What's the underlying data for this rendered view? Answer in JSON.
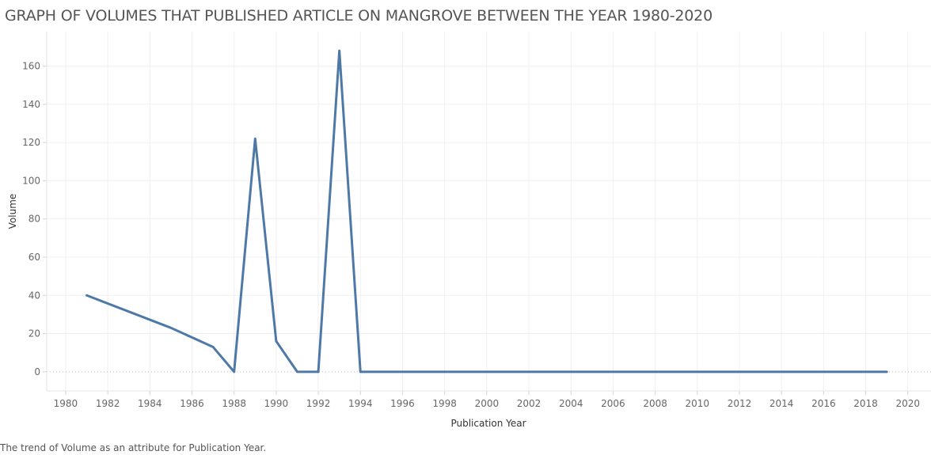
{
  "chart_data": {
    "type": "line",
    "title": "GRAPH OF VOLUMES THAT PUBLISHED ARTICLE ON MANGROVE BETWEEN THE YEAR 1980-2020",
    "xlabel": "Publication Year",
    "ylabel": "Volume",
    "caption": "The trend of Volume as an attribute for Publication Year.",
    "xlim": [
      1979.1,
      2021.1
    ],
    "ylim": [
      -10,
      178
    ],
    "x_ticks": [
      1980,
      1982,
      1984,
      1986,
      1988,
      1990,
      1992,
      1994,
      1996,
      1998,
      2000,
      2002,
      2004,
      2006,
      2008,
      2010,
      2012,
      2014,
      2016,
      2018,
      2020
    ],
    "y_ticks": [
      0,
      20,
      40,
      60,
      80,
      100,
      120,
      140,
      160
    ],
    "grid": true,
    "series": [
      {
        "color": "#4e79a7",
        "points": [
          {
            "x": 1981,
            "y": 40
          },
          {
            "x": 1985,
            "y": 23
          },
          {
            "x": 1987,
            "y": 13
          },
          {
            "x": 1988,
            "y": 0
          },
          {
            "x": 1989,
            "y": 122
          },
          {
            "x": 1990,
            "y": 16
          },
          {
            "x": 1991,
            "y": 0
          },
          {
            "x": 1992,
            "y": 0
          },
          {
            "x": 1993,
            "y": 168
          },
          {
            "x": 1994,
            "y": 0
          },
          {
            "x": 1995,
            "y": 0
          },
          {
            "x": 1996,
            "y": 0
          },
          {
            "x": 1997,
            "y": 0
          },
          {
            "x": 1998,
            "y": 0
          },
          {
            "x": 1999,
            "y": 0
          },
          {
            "x": 2000,
            "y": 0
          },
          {
            "x": 2001,
            "y": 0
          },
          {
            "x": 2002,
            "y": 0
          },
          {
            "x": 2003,
            "y": 0
          },
          {
            "x": 2004,
            "y": 0
          },
          {
            "x": 2005,
            "y": 0
          },
          {
            "x": 2006,
            "y": 0
          },
          {
            "x": 2007,
            "y": 0
          },
          {
            "x": 2008,
            "y": 0
          },
          {
            "x": 2009,
            "y": 0
          },
          {
            "x": 2010,
            "y": 0
          },
          {
            "x": 2011,
            "y": 0
          },
          {
            "x": 2012,
            "y": 0
          },
          {
            "x": 2013,
            "y": 0
          },
          {
            "x": 2014,
            "y": 0
          },
          {
            "x": 2015,
            "y": 0
          },
          {
            "x": 2016,
            "y": 0
          },
          {
            "x": 2017,
            "y": 0
          },
          {
            "x": 2018,
            "y": 0
          },
          {
            "x": 2019,
            "y": 0
          }
        ]
      }
    ]
  }
}
